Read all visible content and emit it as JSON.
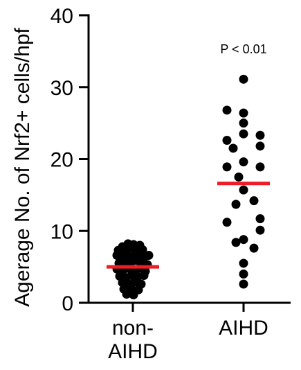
{
  "chart_data": {
    "type": "scatter",
    "ylabel": "Agerage No. of Nrf2+ cells/hpf",
    "ylim": [
      0,
      40
    ],
    "yticks": [
      "0",
      "10",
      "20",
      "30",
      "40"
    ],
    "categories": [
      "non-AIHD",
      "AIHD"
    ],
    "category_label_lines": [
      [
        "non-",
        "AIHD"
      ],
      [
        "AIHD"
      ]
    ],
    "annotation": "P < 0.01",
    "mean_line_color": "#ee1c25",
    "point_color": "#000000",
    "series": [
      {
        "category": "non-AIHD",
        "mean": 5.0,
        "points": [
          {
            "dx": -0.3,
            "y": 7.8
          },
          {
            "dx": -0.14,
            "y": 8.2
          },
          {
            "dx": 0.02,
            "y": 8.1
          },
          {
            "dx": 0.2,
            "y": 8.0
          },
          {
            "dx": -0.42,
            "y": 7.3
          },
          {
            "dx": -0.25,
            "y": 7.2
          },
          {
            "dx": -0.08,
            "y": 7.6
          },
          {
            "dx": 0.1,
            "y": 7.0
          },
          {
            "dx": 0.28,
            "y": 7.4
          },
          {
            "dx": -0.46,
            "y": 6.6
          },
          {
            "dx": -0.32,
            "y": 6.3
          },
          {
            "dx": -0.16,
            "y": 6.7
          },
          {
            "dx": 0.0,
            "y": 6.4
          },
          {
            "dx": 0.16,
            "y": 6.7
          },
          {
            "dx": 0.32,
            "y": 6.3
          },
          {
            "dx": 0.46,
            "y": 6.6
          },
          {
            "dx": -0.4,
            "y": 5.5
          },
          {
            "dx": -0.24,
            "y": 5.8
          },
          {
            "dx": -0.06,
            "y": 5.6
          },
          {
            "dx": 0.1,
            "y": 5.9
          },
          {
            "dx": 0.26,
            "y": 5.6
          },
          {
            "dx": 0.42,
            "y": 5.3
          },
          {
            "dx": -0.46,
            "y": 4.7
          },
          {
            "dx": -0.3,
            "y": 4.4
          },
          {
            "dx": -0.14,
            "y": 4.8
          },
          {
            "dx": 0.04,
            "y": 4.5
          },
          {
            "dx": 0.2,
            "y": 4.8
          },
          {
            "dx": 0.36,
            "y": 4.4
          },
          {
            "dx": -0.38,
            "y": 3.7
          },
          {
            "dx": -0.2,
            "y": 3.5
          },
          {
            "dx": -0.04,
            "y": 3.8
          },
          {
            "dx": 0.14,
            "y": 3.6
          },
          {
            "dx": 0.32,
            "y": 3.8
          },
          {
            "dx": -0.3,
            "y": 2.8
          },
          {
            "dx": -0.12,
            "y": 2.6
          },
          {
            "dx": 0.06,
            "y": 2.9
          },
          {
            "dx": 0.24,
            "y": 2.6
          },
          {
            "dx": -0.26,
            "y": 1.9
          },
          {
            "dx": -0.06,
            "y": 2.1
          },
          {
            "dx": 0.16,
            "y": 1.8
          },
          {
            "dx": -0.18,
            "y": 1.2
          },
          {
            "dx": 0.02,
            "y": 1.1
          }
        ]
      },
      {
        "category": "AIHD",
        "mean": 16.6,
        "points": [
          {
            "dx": 0.0,
            "y": 31.1
          },
          {
            "dx": -0.48,
            "y": 26.8
          },
          {
            "dx": 0.0,
            "y": 26.4
          },
          {
            "dx": 0.0,
            "y": 25.0
          },
          {
            "dx": 0.0,
            "y": 23.5
          },
          {
            "dx": 0.48,
            "y": 23.3
          },
          {
            "dx": -0.48,
            "y": 22.6
          },
          {
            "dx": 0.48,
            "y": 21.8
          },
          {
            "dx": -0.3,
            "y": 21.5
          },
          {
            "dx": 0.0,
            "y": 19.6
          },
          {
            "dx": -0.48,
            "y": 18.9
          },
          {
            "dx": 0.48,
            "y": 18.9
          },
          {
            "dx": -0.14,
            "y": 17.5
          },
          {
            "dx": 0.0,
            "y": 15.7
          },
          {
            "dx": 0.3,
            "y": 14.2
          },
          {
            "dx": -0.22,
            "y": 13.7
          },
          {
            "dx": 0.48,
            "y": 11.7
          },
          {
            "dx": -0.48,
            "y": 11.2
          },
          {
            "dx": 0.48,
            "y": 10.1
          },
          {
            "dx": -0.22,
            "y": 8.4
          },
          {
            "dx": 0.0,
            "y": 8.8
          },
          {
            "dx": 0.3,
            "y": 7.6
          },
          {
            "dx": 0.0,
            "y": 5.5
          },
          {
            "dx": 0.0,
            "y": 4.0
          },
          {
            "dx": 0.0,
            "y": 2.6
          }
        ]
      }
    ]
  }
}
